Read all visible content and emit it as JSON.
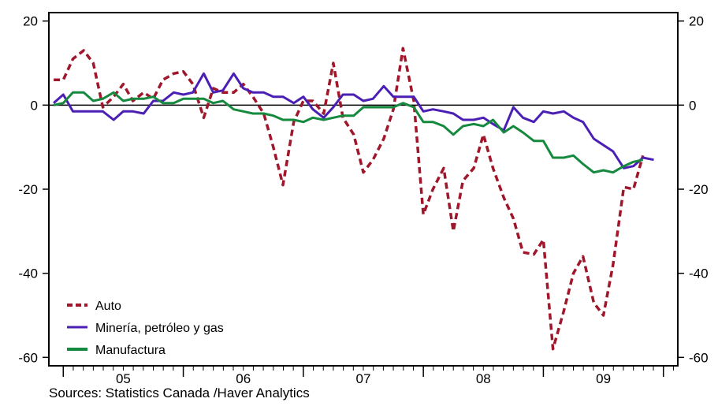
{
  "chart_data": {
    "type": "line",
    "title": "",
    "xlabel": "",
    "ylabel": "",
    "ylim": [
      -62,
      22
    ],
    "x_range": [
      2004.38,
      2009.62
    ],
    "yticks": [
      20,
      0,
      -20,
      -40,
      -60
    ],
    "ytick_labels": [
      "20",
      "0",
      "-20",
      "-40",
      "-60"
    ],
    "year_labels": [
      {
        "label": "05",
        "x": 2005.0
      },
      {
        "label": "06",
        "x": 2006.0
      },
      {
        "label": "07",
        "x": 2007.0
      },
      {
        "label": "08",
        "x": 2008.0
      },
      {
        "label": "09",
        "x": 2009.0
      }
    ],
    "year_boundaries": [
      2004.5,
      2005.5,
      2006.5,
      2007.5,
      2008.5,
      2009.5
    ],
    "grid": false,
    "zero_line": true,
    "legend_position": "bottom-left",
    "series": [
      {
        "name": "Auto",
        "color": "#a0172b",
        "style": "dashed",
        "points": [
          [
            2004.42,
            6
          ],
          [
            2004.5,
            6
          ],
          [
            2004.58,
            11
          ],
          [
            2004.67,
            13
          ],
          [
            2004.75,
            10
          ],
          [
            2004.83,
            -0.5
          ],
          [
            2004.92,
            2
          ],
          [
            2005.0,
            5
          ],
          [
            2005.08,
            1
          ],
          [
            2005.17,
            3
          ],
          [
            2005.25,
            1.5
          ],
          [
            2005.33,
            6
          ],
          [
            2005.42,
            7.5
          ],
          [
            2005.5,
            8
          ],
          [
            2005.58,
            5
          ],
          [
            2005.67,
            -3
          ],
          [
            2005.75,
            4
          ],
          [
            2005.83,
            3
          ],
          [
            2005.92,
            3
          ],
          [
            2006.0,
            5
          ],
          [
            2006.08,
            2
          ],
          [
            2006.17,
            -2
          ],
          [
            2006.25,
            -10
          ],
          [
            2006.33,
            -19
          ],
          [
            2006.42,
            -4
          ],
          [
            2006.5,
            1
          ],
          [
            2006.58,
            1
          ],
          [
            2006.67,
            -2
          ],
          [
            2006.75,
            10
          ],
          [
            2006.83,
            -3
          ],
          [
            2006.92,
            -7
          ],
          [
            2007.0,
            -16
          ],
          [
            2007.08,
            -13
          ],
          [
            2007.17,
            -8
          ],
          [
            2007.25,
            -1
          ],
          [
            2007.33,
            13.5
          ],
          [
            2007.42,
            1
          ],
          [
            2007.5,
            -26
          ],
          [
            2007.58,
            -20
          ],
          [
            2007.67,
            -15
          ],
          [
            2007.75,
            -30
          ],
          [
            2007.83,
            -18
          ],
          [
            2007.92,
            -15
          ],
          [
            2008.0,
            -7
          ],
          [
            2008.08,
            -15
          ],
          [
            2008.17,
            -22
          ],
          [
            2008.25,
            -27
          ],
          [
            2008.33,
            -35
          ],
          [
            2008.42,
            -35.5
          ],
          [
            2008.5,
            -32
          ],
          [
            2008.58,
            -58
          ],
          [
            2008.67,
            -49
          ],
          [
            2008.75,
            -40
          ],
          [
            2008.83,
            -36
          ],
          [
            2008.92,
            -47
          ],
          [
            2009.0,
            -50
          ],
          [
            2009.08,
            -38
          ],
          [
            2009.17,
            -19.5
          ],
          [
            2009.25,
            -20
          ],
          [
            2009.33,
            -12
          ]
        ]
      },
      {
        "name": "Minería, petróleo y gas",
        "color": "#4b1fb3",
        "style": "solid",
        "points": [
          [
            2004.42,
            0.5
          ],
          [
            2004.5,
            2.5
          ],
          [
            2004.58,
            -1.5
          ],
          [
            2004.67,
            -1.5
          ],
          [
            2004.75,
            -1.5
          ],
          [
            2004.83,
            -1.5
          ],
          [
            2004.92,
            -3.5
          ],
          [
            2005.0,
            -1.5
          ],
          [
            2005.08,
            -1.5
          ],
          [
            2005.17,
            -2
          ],
          [
            2005.25,
            1
          ],
          [
            2005.33,
            1
          ],
          [
            2005.42,
            3
          ],
          [
            2005.5,
            2.5
          ],
          [
            2005.58,
            3
          ],
          [
            2005.67,
            7.5
          ],
          [
            2005.75,
            3
          ],
          [
            2005.83,
            3.5
          ],
          [
            2005.92,
            7.5
          ],
          [
            2006.0,
            4
          ],
          [
            2006.08,
            3
          ],
          [
            2006.17,
            3
          ],
          [
            2006.25,
            2
          ],
          [
            2006.33,
            2
          ],
          [
            2006.42,
            0.5
          ],
          [
            2006.5,
            2
          ],
          [
            2006.58,
            -1
          ],
          [
            2006.67,
            -3
          ],
          [
            2006.75,
            -0.5
          ],
          [
            2006.83,
            2.5
          ],
          [
            2006.92,
            2.5
          ],
          [
            2007.0,
            1
          ],
          [
            2007.08,
            1.5
          ],
          [
            2007.17,
            4.5
          ],
          [
            2007.25,
            2
          ],
          [
            2007.33,
            2
          ],
          [
            2007.42,
            2
          ],
          [
            2007.5,
            -1.5
          ],
          [
            2007.58,
            -1
          ],
          [
            2007.67,
            -1.5
          ],
          [
            2007.75,
            -2
          ],
          [
            2007.83,
            -3.5
          ],
          [
            2007.92,
            -3.5
          ],
          [
            2008.0,
            -3
          ],
          [
            2008.08,
            -4.5
          ],
          [
            2008.17,
            -6
          ],
          [
            2008.25,
            -0.5
          ],
          [
            2008.33,
            -3
          ],
          [
            2008.42,
            -4
          ],
          [
            2008.5,
            -1.5
          ],
          [
            2008.58,
            -2
          ],
          [
            2008.67,
            -1.5
          ],
          [
            2008.75,
            -3
          ],
          [
            2008.83,
            -4
          ],
          [
            2008.92,
            -8
          ],
          [
            2009.0,
            -9.5
          ],
          [
            2009.08,
            -11
          ],
          [
            2009.17,
            -15
          ],
          [
            2009.25,
            -14.5
          ],
          [
            2009.33,
            -12.5
          ],
          [
            2009.42,
            -13
          ]
        ]
      },
      {
        "name": "Manufactura",
        "color": "#158a3e",
        "style": "solid",
        "points": [
          [
            2004.42,
            0
          ],
          [
            2004.5,
            0.5
          ],
          [
            2004.58,
            3
          ],
          [
            2004.67,
            3
          ],
          [
            2004.75,
            1
          ],
          [
            2004.83,
            1.5
          ],
          [
            2004.92,
            3
          ],
          [
            2005.0,
            1
          ],
          [
            2005.08,
            1.5
          ],
          [
            2005.17,
            1.5
          ],
          [
            2005.25,
            2
          ],
          [
            2005.33,
            0.5
          ],
          [
            2005.42,
            0.5
          ],
          [
            2005.5,
            1.5
          ],
          [
            2005.58,
            1.5
          ],
          [
            2005.67,
            1.5
          ],
          [
            2005.75,
            0.5
          ],
          [
            2005.83,
            1
          ],
          [
            2005.92,
            -1
          ],
          [
            2006.0,
            -1.5
          ],
          [
            2006.08,
            -2
          ],
          [
            2006.17,
            -2
          ],
          [
            2006.25,
            -2.5
          ],
          [
            2006.33,
            -3.5
          ],
          [
            2006.42,
            -3.5
          ],
          [
            2006.5,
            -4
          ],
          [
            2006.58,
            -3
          ],
          [
            2006.67,
            -3.5
          ],
          [
            2006.75,
            -3
          ],
          [
            2006.83,
            -2.5
          ],
          [
            2006.92,
            -2.5
          ],
          [
            2007.0,
            -0.5
          ],
          [
            2007.08,
            -0.5
          ],
          [
            2007.17,
            -0.5
          ],
          [
            2007.25,
            -0.5
          ],
          [
            2007.33,
            0.5
          ],
          [
            2007.42,
            -0.5
          ],
          [
            2007.5,
            -4
          ],
          [
            2007.58,
            -4
          ],
          [
            2007.67,
            -5
          ],
          [
            2007.75,
            -7
          ],
          [
            2007.83,
            -5
          ],
          [
            2007.92,
            -4.5
          ],
          [
            2008.0,
            -5
          ],
          [
            2008.08,
            -3.5
          ],
          [
            2008.17,
            -6.5
          ],
          [
            2008.25,
            -5
          ],
          [
            2008.33,
            -6.5
          ],
          [
            2008.42,
            -8.5
          ],
          [
            2008.5,
            -8.5
          ],
          [
            2008.58,
            -12.5
          ],
          [
            2008.67,
            -12.5
          ],
          [
            2008.75,
            -12
          ],
          [
            2008.83,
            -14
          ],
          [
            2008.92,
            -16
          ],
          [
            2009.0,
            -15.5
          ],
          [
            2009.08,
            -16
          ],
          [
            2009.17,
            -14.5
          ],
          [
            2009.25,
            -13.5
          ],
          [
            2009.33,
            -13
          ]
        ]
      }
    ]
  },
  "source_note": "Sources:  Statistics Canada /Haver Analytics"
}
